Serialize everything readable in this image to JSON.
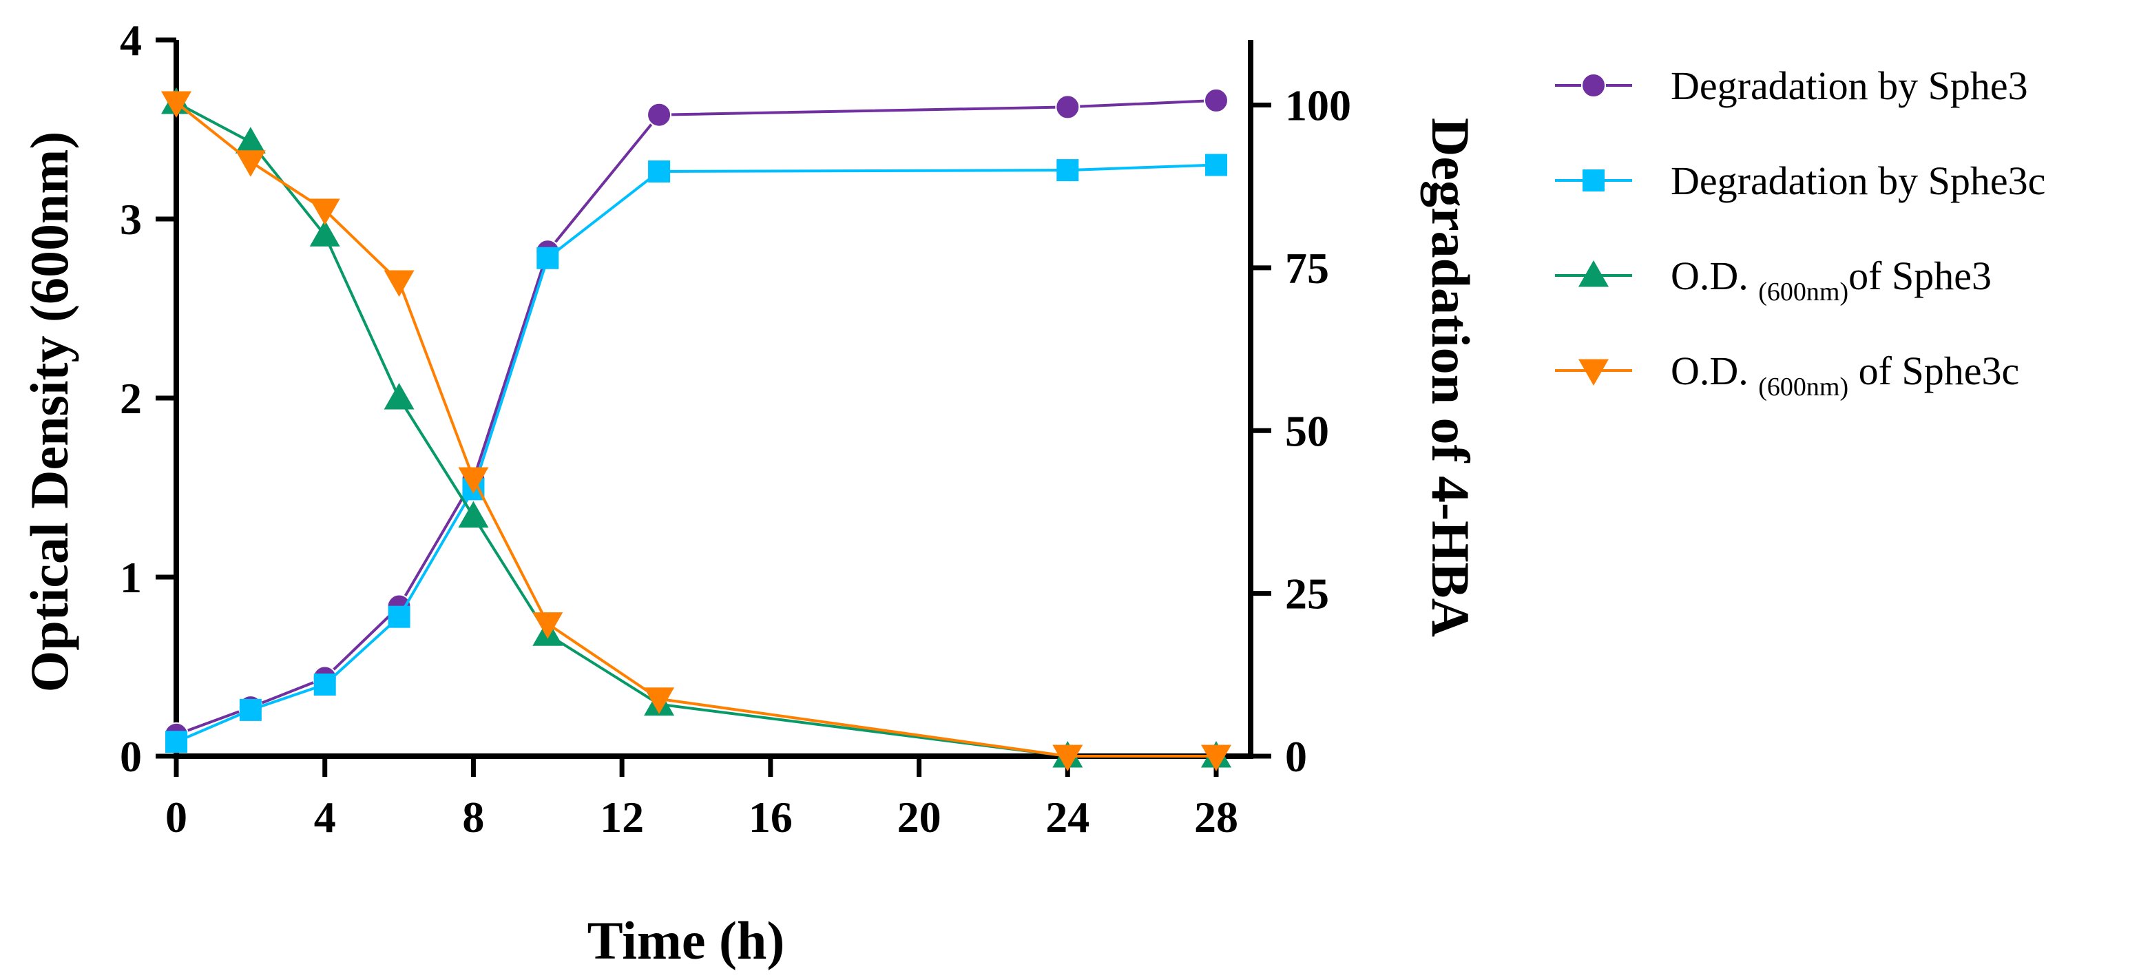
{
  "chart_data": {
    "type": "line",
    "x_axis": {
      "title": "Time (h)",
      "ticks": [
        0,
        4,
        8,
        12,
        16,
        20,
        24,
        28
      ],
      "range": [
        0,
        28
      ]
    },
    "y_axis_left": {
      "title": "Optical Density (600nm)",
      "ticks": [
        0,
        1,
        2,
        3,
        4
      ],
      "range": [
        0,
        4
      ]
    },
    "y_axis_right": {
      "title": "Degradation of 4-HBA",
      "ticks": [
        0,
        25,
        50,
        75,
        100
      ],
      "range": [
        0,
        110
      ]
    },
    "series": [
      {
        "name": "Degradation by Sphe3",
        "axis": "right",
        "marker": "circle",
        "color": "#7030a0",
        "x": [
          0,
          2,
          4,
          6,
          8,
          10,
          13,
          24,
          28
        ],
        "values": [
          3.3,
          7.5,
          12,
          23,
          42.5,
          77.5,
          98.5,
          99.7,
          100.7
        ]
      },
      {
        "name": "Degradation by Sphe3c",
        "axis": "right",
        "marker": "square",
        "color": "#00bfff",
        "x": [
          0,
          2,
          4,
          6,
          8,
          10,
          13,
          24,
          28
        ],
        "values": [
          2.2,
          7.1,
          11,
          21.4,
          41,
          76.5,
          89.8,
          90,
          90.8
        ]
      },
      {
        "name": "O.D. (600nm)of Sphe3",
        "axis": "left",
        "marker": "triangle-up",
        "color": "#079a68",
        "x": [
          0,
          2,
          4,
          6,
          8,
          10,
          13,
          24,
          28
        ],
        "values": [
          3.65,
          3.43,
          2.91,
          2.0,
          1.34,
          0.68,
          0.29,
          0.0,
          0.0
        ]
      },
      {
        "name": "O.D. (600nm) of Sphe3c",
        "axis": "left",
        "marker": "triangle-down",
        "color": "#ff8000",
        "x": [
          0,
          2,
          4,
          6,
          8,
          10,
          13,
          24,
          28
        ],
        "values": [
          3.65,
          3.32,
          3.05,
          2.65,
          1.55,
          0.74,
          0.32,
          0.0,
          0.0
        ]
      }
    ],
    "legend": {
      "placement": "right",
      "entries": [
        {
          "prefix": "Degradation by Sphe3",
          "sub": "",
          "suffix": ""
        },
        {
          "prefix": "Degradation by Sphe3c",
          "sub": "",
          "suffix": ""
        },
        {
          "prefix": "O.D. ",
          "sub": "(600nm)",
          "suffix": "of Sphe3"
        },
        {
          "prefix": "O.D. ",
          "sub": "(600nm)",
          "suffix": " of Sphe3c"
        }
      ]
    }
  }
}
